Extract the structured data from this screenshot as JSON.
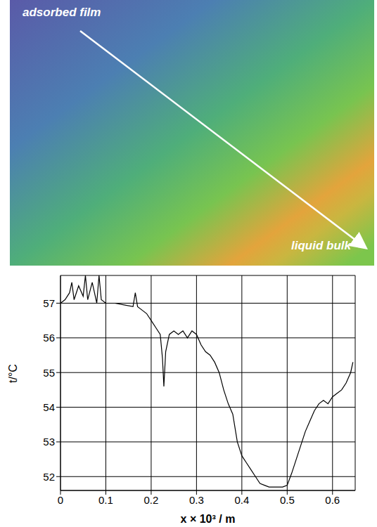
{
  "chart_data": {
    "type": "line",
    "annotations": [
      "adsorbed film",
      "liquid bulk"
    ],
    "x_label": "x × 10³ / m",
    "y_label": "t/°C",
    "x": [
      0,
      0.01,
      0.02,
      0.025,
      0.03,
      0.04,
      0.05,
      0.055,
      0.06,
      0.07,
      0.08,
      0.085,
      0.09,
      0.1,
      0.12,
      0.14,
      0.16,
      0.165,
      0.17,
      0.18,
      0.19,
      0.2,
      0.21,
      0.22,
      0.225,
      0.228,
      0.232,
      0.24,
      0.25,
      0.26,
      0.27,
      0.28,
      0.29,
      0.3,
      0.31,
      0.32,
      0.33,
      0.34,
      0.35,
      0.36,
      0.37,
      0.38,
      0.39,
      0.4,
      0.41,
      0.42,
      0.43,
      0.44,
      0.45,
      0.46,
      0.47,
      0.48,
      0.49,
      0.5,
      0.51,
      0.52,
      0.53,
      0.54,
      0.55,
      0.56,
      0.57,
      0.58,
      0.59,
      0.6,
      0.61,
      0.62,
      0.63,
      0.64,
      0.645
    ],
    "values": [
      57.0,
      57.1,
      57.3,
      57.6,
      57.1,
      57.5,
      57.2,
      57.8,
      57.1,
      57.6,
      57.0,
      57.8,
      57.1,
      57.0,
      57.0,
      56.95,
      56.9,
      57.3,
      56.9,
      56.8,
      56.7,
      56.5,
      56.3,
      56.1,
      55.4,
      54.6,
      55.6,
      56.1,
      56.2,
      56.1,
      56.2,
      56.0,
      56.2,
      56.1,
      55.8,
      55.6,
      55.5,
      55.3,
      55.0,
      54.5,
      54.1,
      53.8,
      53.0,
      52.6,
      52.4,
      52.2,
      52.0,
      51.8,
      51.75,
      51.7,
      51.7,
      51.7,
      51.7,
      51.75,
      52.1,
      52.5,
      52.9,
      53.3,
      53.6,
      53.9,
      54.1,
      54.2,
      54.1,
      54.3,
      54.4,
      54.5,
      54.7,
      55.0,
      55.3
    ],
    "color": "#000000",
    "xlim": [
      0,
      0.65
    ],
    "ylim": [
      51.6,
      57.8
    ],
    "xticks": [
      0,
      0.1,
      0.2,
      0.3,
      0.4,
      0.5,
      0.6
    ],
    "yticks": [
      52,
      53,
      54,
      55,
      56,
      57
    ],
    "grid": true
  }
}
